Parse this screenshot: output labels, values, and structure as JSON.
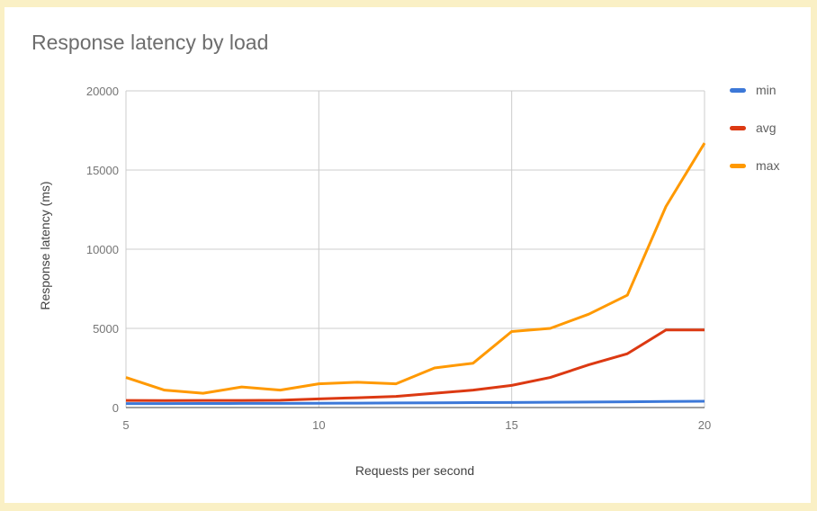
{
  "window": {
    "frame_border_color": "#faf0c5",
    "card_background": "#ffffff"
  },
  "styles": {
    "title_color": "#6d6d6d",
    "axis_title_color": "#424242",
    "tick_label_color": "#757575",
    "gridline_color": "#cccccc",
    "baseline_color": "#424242",
    "legend_label_color": "#5f5f5f"
  },
  "chart_data": {
    "type": "line",
    "title": "Response latency by load",
    "xlabel": "Requests per second",
    "ylabel": "Response latency (ms)",
    "xlim": [
      5,
      20
    ],
    "ylim": [
      0,
      20000
    ],
    "xticks": [
      5,
      10,
      15,
      20
    ],
    "yticks": [
      0,
      5000,
      10000,
      15000,
      20000
    ],
    "grid": true,
    "legend_position": "right",
    "x": [
      5,
      6,
      7,
      8,
      9,
      10,
      11,
      12,
      13,
      14,
      15,
      16,
      17,
      18,
      19,
      20
    ],
    "series": [
      {
        "name": "min",
        "color": "#3c78d8",
        "values": [
          250,
          250,
          255,
          260,
          265,
          270,
          280,
          290,
          300,
          310,
          320,
          335,
          350,
          365,
          380,
          400
        ]
      },
      {
        "name": "avg",
        "color": "#dc3912",
        "values": [
          450,
          440,
          445,
          450,
          460,
          550,
          620,
          700,
          900,
          1100,
          1400,
          1900,
          2700,
          3400,
          4900,
          4900
        ]
      },
      {
        "name": "max",
        "color": "#ff9900",
        "values": [
          1900,
          1100,
          900,
          1300,
          1100,
          1500,
          1600,
          1500,
          2500,
          2800,
          4800,
          5000,
          5900,
          7100,
          12700,
          16700
        ]
      }
    ]
  }
}
